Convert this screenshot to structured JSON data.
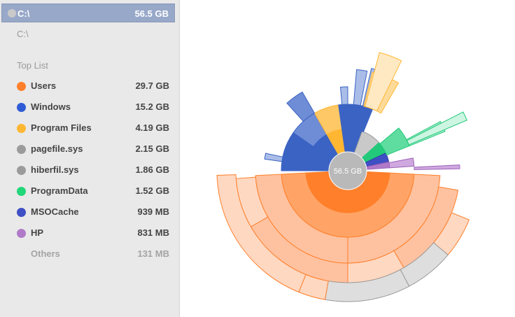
{
  "header": {
    "name": "C:\\",
    "size": "56.5 GB"
  },
  "path": "C:\\",
  "toplist": {
    "title": "Top List",
    "items": [
      {
        "label": "Users",
        "size": "29.7 GB",
        "color": "#ff7f2a"
      },
      {
        "label": "Windows",
        "size": "15.2 GB",
        "color": "#2f5cd6"
      },
      {
        "label": "Program Files",
        "size": "4.19 GB",
        "color": "#ffb733"
      },
      {
        "label": "pagefile.sys",
        "size": "2.15 GB",
        "color": "#9b9b9b"
      },
      {
        "label": "hiberfil.sys",
        "size": "1.86 GB",
        "color": "#9b9b9b"
      },
      {
        "label": "ProgramData",
        "size": "1.52 GB",
        "color": "#22d67a"
      },
      {
        "label": "MSOCache",
        "size": "939 MB",
        "color": "#3f4fc4"
      },
      {
        "label": "HP",
        "size": "831 MB",
        "color": "#b07ac9"
      },
      {
        "label": "Others",
        "size": "131 MB",
        "color": ""
      }
    ]
  },
  "center_label": "56.5 GB",
  "colors": {
    "orange": "#ff7f2a",
    "blue": "#3b63c4",
    "yellow": "#ffb733",
    "green": "#22c97a",
    "gray": "#b5b5b5",
    "navy": "#3f4fc4",
    "purple": "#b07ac9"
  }
}
